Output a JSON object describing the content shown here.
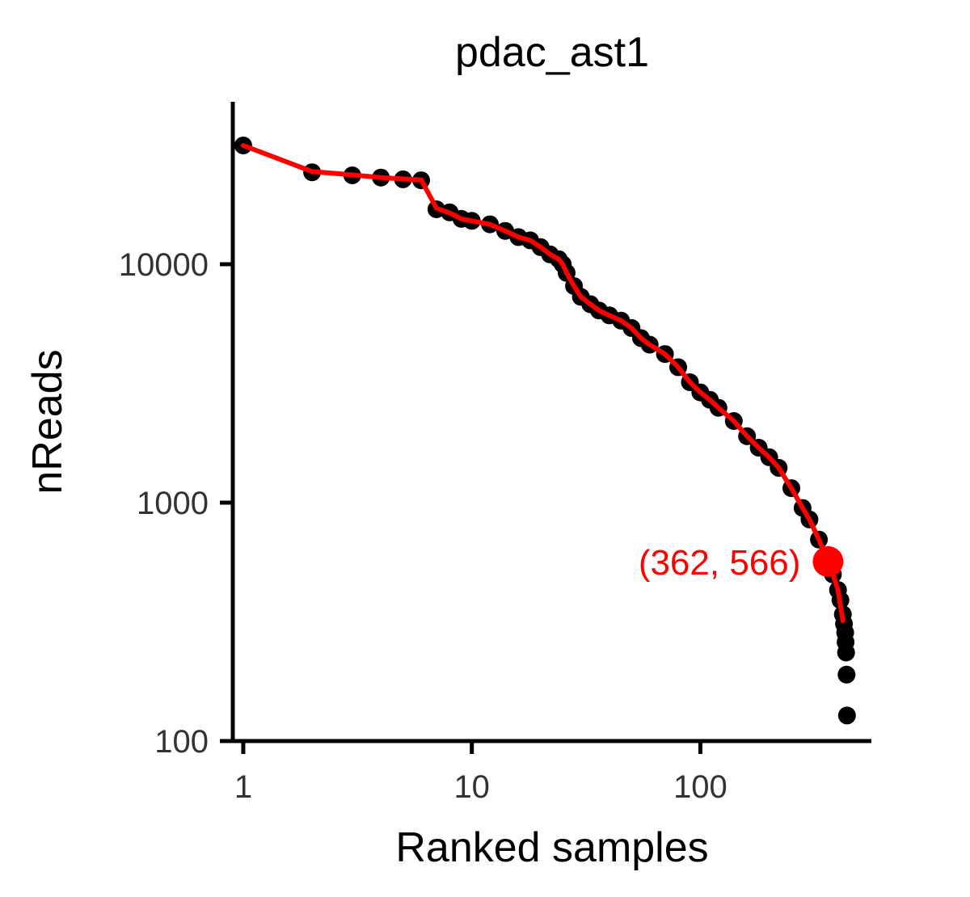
{
  "chart_data": {
    "type": "scatter",
    "title": "pdac_ast1",
    "xlabel": "Ranked samples",
    "ylabel": "nReads",
    "x_scale": "log10",
    "y_scale": "log10",
    "xlim": [
      0.9,
      560
    ],
    "ylim": [
      100,
      48000
    ],
    "x_ticks": [
      {
        "value": 1,
        "label": "1"
      },
      {
        "value": 10,
        "label": "10"
      },
      {
        "value": 100,
        "label": "100"
      }
    ],
    "y_ticks": [
      {
        "value": 100,
        "label": "100"
      },
      {
        "value": 1000,
        "label": "1000"
      },
      {
        "value": 10000,
        "label": "10000"
      }
    ],
    "grid": false,
    "colors": {
      "points": "#000000",
      "line": "#ff0000",
      "annotation": "#ff0000",
      "axis": "#000000"
    },
    "knee_point": {
      "x": 362,
      "y": 566,
      "label": "(362, 566)"
    },
    "points": [
      [
        1,
        31500
      ],
      [
        2,
        24300
      ],
      [
        3,
        23600
      ],
      [
        4,
        23100
      ],
      [
        5,
        22700
      ],
      [
        6,
        22500
      ],
      [
        7,
        17000
      ],
      [
        8,
        16500
      ],
      [
        9,
        15500
      ],
      [
        10,
        15200
      ],
      [
        12,
        14700
      ],
      [
        14,
        13800
      ],
      [
        16,
        13000
      ],
      [
        18,
        12600
      ],
      [
        20,
        11800
      ],
      [
        22,
        11000
      ],
      [
        24,
        10500
      ],
      [
        25,
        10000
      ],
      [
        26,
        9200
      ],
      [
        28,
        8100
      ],
      [
        30,
        7300
      ],
      [
        33,
        6800
      ],
      [
        36,
        6400
      ],
      [
        40,
        6100
      ],
      [
        45,
        5800
      ],
      [
        50,
        5400
      ],
      [
        55,
        4900
      ],
      [
        60,
        4600
      ],
      [
        70,
        4200
      ],
      [
        80,
        3700
      ],
      [
        90,
        3200
      ],
      [
        100,
        2900
      ],
      [
        110,
        2700
      ],
      [
        120,
        2500
      ],
      [
        140,
        2200
      ],
      [
        160,
        1900
      ],
      [
        180,
        1700
      ],
      [
        200,
        1550
      ],
      [
        220,
        1400
      ],
      [
        250,
        1150
      ],
      [
        280,
        950
      ],
      [
        300,
        850
      ],
      [
        330,
        700
      ],
      [
        362,
        566
      ],
      [
        380,
        500
      ],
      [
        400,
        430
      ],
      [
        410,
        390
      ],
      [
        420,
        340
      ],
      [
        425,
        310
      ],
      [
        430,
        285
      ],
      [
        432,
        260
      ],
      [
        434,
        235
      ],
      [
        436,
        190
      ],
      [
        438,
        128
      ]
    ],
    "line": [
      [
        1,
        31500
      ],
      [
        2,
        24500
      ],
      [
        3,
        23700
      ],
      [
        4,
        23100
      ],
      [
        5,
        22800
      ],
      [
        6,
        22600
      ],
      [
        7,
        17200
      ],
      [
        8,
        16400
      ],
      [
        9,
        15500
      ],
      [
        10,
        15200
      ],
      [
        12,
        14700
      ],
      [
        14,
        13800
      ],
      [
        16,
        13000
      ],
      [
        18,
        12600
      ],
      [
        20,
        11800
      ],
      [
        22,
        11000
      ],
      [
        24,
        10500
      ],
      [
        25,
        10000
      ],
      [
        26,
        9200
      ],
      [
        28,
        8100
      ],
      [
        30,
        7300
      ],
      [
        33,
        6800
      ],
      [
        36,
        6400
      ],
      [
        40,
        6100
      ],
      [
        45,
        5800
      ],
      [
        50,
        5400
      ],
      [
        55,
        4900
      ],
      [
        60,
        4600
      ],
      [
        70,
        4200
      ],
      [
        80,
        3700
      ],
      [
        90,
        3200
      ],
      [
        100,
        2900
      ],
      [
        110,
        2700
      ],
      [
        120,
        2500
      ],
      [
        140,
        2200
      ],
      [
        160,
        1900
      ],
      [
        180,
        1700
      ],
      [
        200,
        1550
      ],
      [
        220,
        1400
      ],
      [
        250,
        1150
      ],
      [
        280,
        950
      ],
      [
        300,
        850
      ],
      [
        330,
        700
      ],
      [
        362,
        566
      ],
      [
        380,
        500
      ],
      [
        400,
        430
      ],
      [
        420,
        320
      ]
    ]
  }
}
